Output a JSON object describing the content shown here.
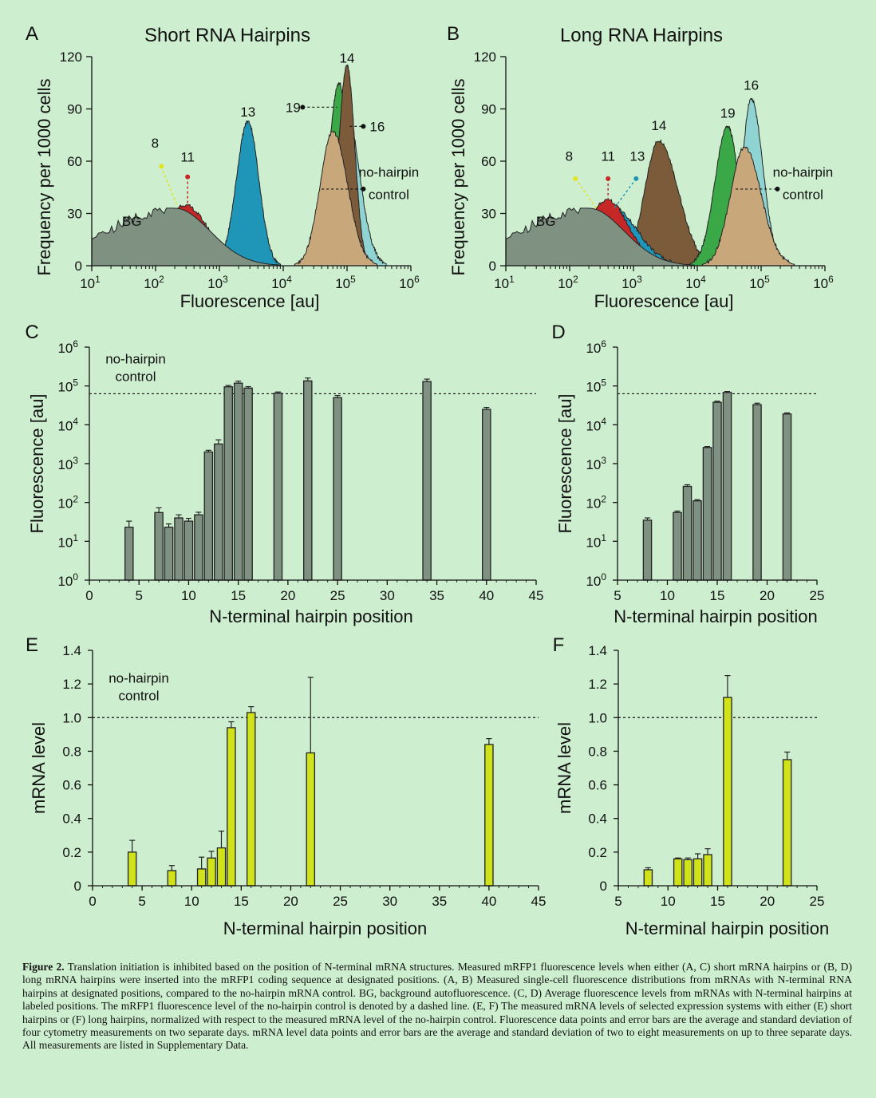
{
  "colors": {
    "bg": "#cdeecf",
    "gray": "#7f9181",
    "yellow": "#e2e41d",
    "red": "#c62828",
    "blue": "#1f95b8",
    "teal": "#8fd4d3",
    "green": "#3aa847",
    "tan": "#c8a77b",
    "brown": "#7b5b3a",
    "yellowgreen": "#cfe21a"
  },
  "panels": {
    "A": {
      "letter": "A",
      "title": "Short RNA Hairpins",
      "ylabel": "Frequency per 1000 cells",
      "xlabel": "Fluorescence [au]",
      "labels": {
        "bg": "BG",
        "l8": "8",
        "l11": "11",
        "l13": "13",
        "l14": "14",
        "l16": "16",
        "l19": "19",
        "ctrl1": "no-hairpin",
        "ctrl2": "control"
      }
    },
    "B": {
      "letter": "B",
      "title": "Long RNA Hairpins",
      "ylabel": "Frequency per 1000 cells",
      "xlabel": "Fluorescence [au]",
      "labels": {
        "bg": "BG",
        "l8": "8",
        "l11": "11",
        "l13": "13",
        "l14": "14",
        "l16": "16",
        "l19": "19",
        "ctrl1": "no-hairpin",
        "ctrl2": "control"
      }
    },
    "C": {
      "letter": "C",
      "ylabel": "Fluorescence [au]",
      "xlabel": "N-terminal hairpin position",
      "ctrl1": "no-hairpin",
      "ctrl2": "control"
    },
    "D": {
      "letter": "D",
      "ylabel": "Fluorescence [au]",
      "xlabel": "N-terminal hairpin position"
    },
    "E": {
      "letter": "E",
      "ylabel": "mRNA level",
      "xlabel": "N-terminal hairpin position",
      "ctrl1": "no-hairpin",
      "ctrl2": "control"
    },
    "F": {
      "letter": "F",
      "ylabel": "mRNA level",
      "xlabel": "N-terminal hairpin position"
    }
  },
  "chart_data": [
    {
      "panel": "A",
      "type": "area",
      "title": "Short RNA Hairpins",
      "xlabel": "Fluorescence [au]",
      "ylabel": "Frequency per 1000 cells",
      "xscale": "log",
      "xlim": [
        10,
        1000000
      ],
      "ylim": [
        0,
        120
      ],
      "yticks": [
        0,
        30,
        60,
        90,
        120
      ],
      "series": [
        {
          "name": "BG",
          "peak_x": 200,
          "peak_y": 33
        },
        {
          "name": "8",
          "peak_x": 250,
          "peak_y": 30
        },
        {
          "name": "11",
          "peak_x": 280,
          "peak_y": 35
        },
        {
          "name": "13",
          "peak_x": 2800,
          "peak_y": 83
        },
        {
          "name": "no-hairpin control",
          "peak_x": 60000,
          "peak_y": 77
        },
        {
          "name": "16",
          "peak_x": 90000,
          "peak_y": 97
        },
        {
          "name": "19",
          "peak_x": 75000,
          "peak_y": 105
        },
        {
          "name": "14",
          "peak_x": 100000,
          "peak_y": 115
        }
      ]
    },
    {
      "panel": "B",
      "type": "area",
      "title": "Long RNA Hairpins",
      "xlabel": "Fluorescence [au]",
      "ylabel": "Frequency per 1000 cells",
      "xscale": "log",
      "xlim": [
        10,
        1000000
      ],
      "ylim": [
        0,
        120
      ],
      "yticks": [
        0,
        30,
        60,
        90,
        120
      ],
      "series": [
        {
          "name": "BG",
          "peak_x": 200,
          "peak_y": 33
        },
        {
          "name": "8",
          "peak_x": 300,
          "peak_y": 30
        },
        {
          "name": "11",
          "peak_x": 380,
          "peak_y": 38
        },
        {
          "name": "13",
          "peak_x": 450,
          "peak_y": 34
        },
        {
          "name": "14",
          "peak_x": 2500,
          "peak_y": 72
        },
        {
          "name": "19",
          "peak_x": 30000,
          "peak_y": 80
        },
        {
          "name": "no-hairpin control",
          "peak_x": 55000,
          "peak_y": 68
        },
        {
          "name": "16",
          "peak_x": 70000,
          "peak_y": 96
        }
      ]
    },
    {
      "panel": "C",
      "type": "bar",
      "xlabel": "N-terminal hairpin position",
      "ylabel": "Fluorescence [au]",
      "yscale": "log",
      "xlim": [
        0,
        45
      ],
      "ylim": [
        1,
        1000000
      ],
      "control": 63000,
      "x": [
        4,
        7,
        8,
        9,
        10,
        11,
        12,
        13,
        14,
        15,
        16,
        19,
        22,
        25,
        34,
        40
      ],
      "values": [
        23,
        55,
        23,
        40,
        33,
        48,
        2000,
        3200,
        95000,
        118000,
        88000,
        65000,
        135000,
        50000,
        130000,
        25000
      ],
      "errors": [
        10,
        18,
        5,
        8,
        6,
        8,
        200,
        900,
        8000,
        15000,
        8000,
        5000,
        25000,
        7000,
        20000,
        3000
      ]
    },
    {
      "panel": "D",
      "type": "bar",
      "xlabel": "N-terminal hairpin position",
      "ylabel": "Fluorescence [au]",
      "yscale": "log",
      "xlim": [
        5,
        25
      ],
      "ylim": [
        1,
        1000000
      ],
      "control": 63000,
      "x": [
        8,
        11,
        12,
        13,
        14,
        15,
        16,
        19,
        22
      ],
      "values": [
        35,
        55,
        260,
        110,
        2600,
        38000,
        68000,
        33000,
        19000
      ],
      "errors": [
        5,
        5,
        25,
        8,
        150,
        2500,
        4000,
        3000,
        1200
      ]
    },
    {
      "panel": "E",
      "type": "bar",
      "xlabel": "N-terminal hairpin position",
      "ylabel": "mRNA level",
      "xlim": [
        0,
        45
      ],
      "ylim": [
        0,
        1.4
      ],
      "control": 1.0,
      "x": [
        4,
        8,
        11,
        12,
        13,
        14,
        16,
        22,
        40
      ],
      "values": [
        0.2,
        0.09,
        0.1,
        0.165,
        0.225,
        0.94,
        1.03,
        0.79,
        0.84
      ],
      "errors": [
        0.07,
        0.03,
        0.07,
        0.04,
        0.1,
        0.035,
        0.035,
        0.45,
        0.035
      ]
    },
    {
      "panel": "F",
      "type": "bar",
      "xlabel": "N-terminal hairpin position",
      "ylabel": "mRNA level",
      "xlim": [
        5,
        25
      ],
      "ylim": [
        0,
        1.4
      ],
      "control": 1.0,
      "x": [
        8,
        11,
        12,
        13,
        14,
        16,
        22
      ],
      "values": [
        0.095,
        0.16,
        0.155,
        0.16,
        0.185,
        1.12,
        0.75
      ],
      "errors": [
        0.012,
        0.005,
        0.01,
        0.03,
        0.035,
        0.13,
        0.045
      ]
    }
  ],
  "caption": {
    "label": "Figure 2.",
    "text": " Translation initiation is inhibited based on the position of N-terminal mRNA structures. Measured mRFP1 fluorescence levels when either (A, C) short mRNA hairpins or (B, D) long mRNA hairpins were inserted into the mRFP1 coding sequence at designated positions. (A, B) Measured single-cell fluorescence distributions from mRNAs with N-terminal RNA hairpins at designated positions, compared to the no-hairpin mRNA control. BG, background autofluorescence. (C, D) Average fluorescence levels from mRNAs with N-terminal hairpins at labeled positions. The mRFP1 fluorescence level of the no-hairpin control is denoted by a dashed line. (E, F) The measured mRNA levels of selected expression systems with either (E) short hairpins or (F) long hairpins, normalized with respect to the measured mRNA level of the no-hairpin control. Fluorescence data points and error bars are the average and standard deviation of four cytometry measurements on two separate days. mRNA level data points and error bars are the average and standard deviation of two to eight measurements on up to three separate days. All measurements are listed in Supplementary Data."
  }
}
